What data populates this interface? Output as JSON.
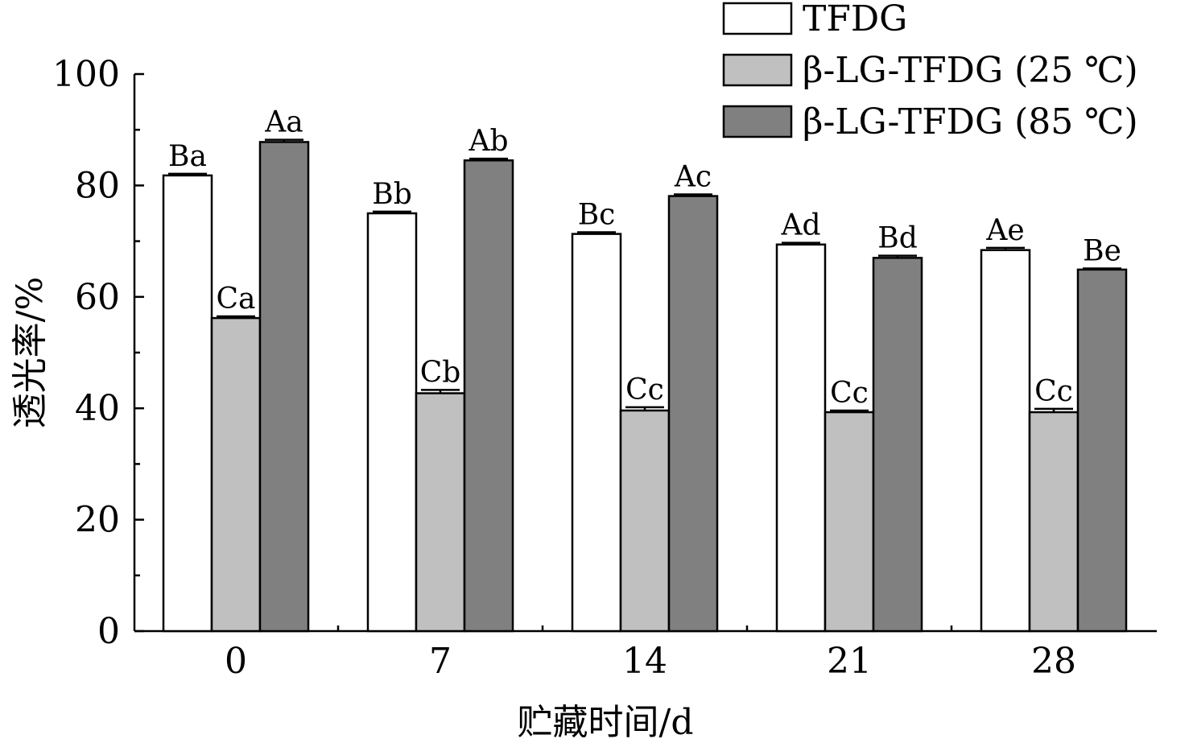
{
  "chart_data": {
    "type": "bar",
    "xlabel": "贮藏时间/d",
    "ylabel": "透光率/%",
    "ylim": [
      0,
      100
    ],
    "yticks": [
      0,
      20,
      40,
      60,
      80,
      100
    ],
    "categories": [
      "0",
      "7",
      "14",
      "21",
      "28"
    ],
    "legend_position": "top-right",
    "series": [
      {
        "name": "TFDG",
        "color": "#ffffff",
        "values": [
          81.8,
          75.0,
          71.3,
          69.4,
          68.4
        ],
        "errors": [
          0.3,
          0.3,
          0.3,
          0.3,
          0.4
        ],
        "labels": [
          "Ba",
          "Bb",
          "Bc",
          "Ad",
          "Ae"
        ]
      },
      {
        "name": "β-LG-TFDG (25 ℃)",
        "color": "#c0c0c0",
        "values": [
          56.2,
          42.7,
          39.6,
          39.3,
          39.3
        ],
        "errors": [
          0.3,
          0.6,
          0.6,
          0.3,
          0.6
        ],
        "labels": [
          "Ca",
          "Cb",
          "Cc",
          "Cc",
          "Cc"
        ]
      },
      {
        "name": "β-LG-TFDG (85 ℃)",
        "color": "#808080",
        "values": [
          87.8,
          84.5,
          78.1,
          67.0,
          64.9
        ],
        "errors": [
          0.4,
          0.3,
          0.3,
          0.4,
          0.2
        ],
        "labels": [
          "Aa",
          "Ab",
          "Ac",
          "Bd",
          "Be"
        ]
      }
    ]
  }
}
